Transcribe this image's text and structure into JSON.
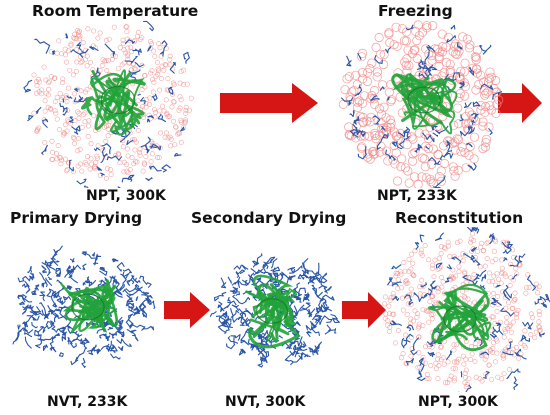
{
  "stages": {
    "room_temperature": {
      "title": "Room Temperature",
      "condition": "NPT, 300K"
    },
    "freezing": {
      "title": "Freezing",
      "condition": "NPT, 233K"
    },
    "primary_drying": {
      "title": "Primary Drying",
      "condition": "NVT, 233K"
    },
    "secondary_drying": {
      "title": "Secondary Drying",
      "condition": "NVT, 300K"
    },
    "reconstitution": {
      "title": "Reconstitution",
      "condition": "NPT, 300K"
    }
  },
  "colors": {
    "arrow": "#d61515",
    "water": "#f08a8a",
    "excipient": "#2a56a8",
    "protein": "#22a33a"
  }
}
